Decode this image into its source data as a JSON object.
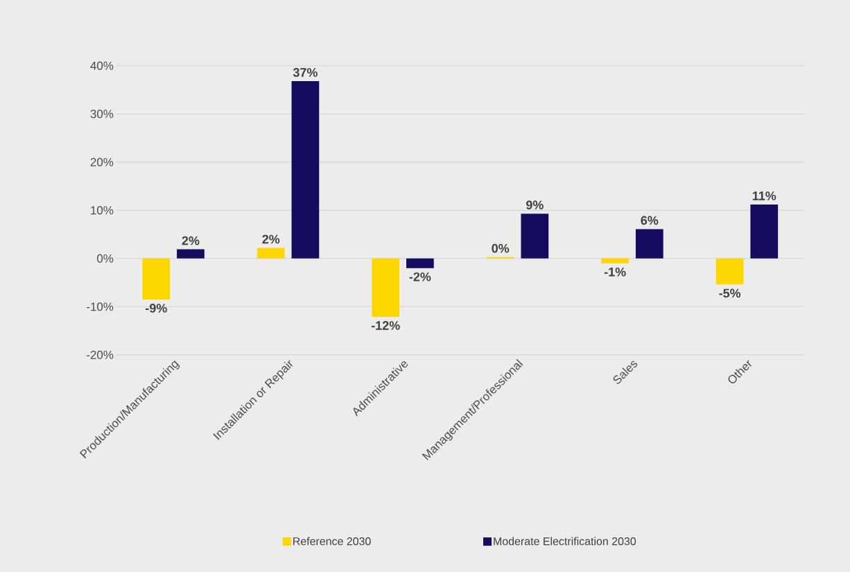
{
  "chart_data": {
    "type": "bar",
    "categories": [
      "Production/Manufacturing",
      "Installation or Repair",
      "Administrative",
      "Management/Professional",
      "Sales",
      "Other"
    ],
    "series": [
      {
        "name": "Reference 2030",
        "color": "#ffd700",
        "values": [
          -8.5,
          2.2,
          -12.1,
          0.3,
          -1.0,
          -5.4
        ],
        "value_labels": [
          "-9%",
          "2%",
          "-12%",
          "0%",
          "-1%",
          "-5%"
        ]
      },
      {
        "name": "Moderate Electrification 2030",
        "color": "#140c5e",
        "values": [
          1.9,
          36.8,
          -2.0,
          9.3,
          6.1,
          11.2
        ],
        "value_labels": [
          "2%",
          "37%",
          "-2%",
          "9%",
          "6%",
          "11%"
        ]
      }
    ],
    "ylim": [
      -20,
      40
    ],
    "yticks": [
      {
        "value": -20,
        "label": "-20%"
      },
      {
        "value": -10,
        "label": "-10%"
      },
      {
        "value": 0,
        "label": "0%"
      },
      {
        "value": 10,
        "label": "10%"
      },
      {
        "value": 20,
        "label": "20%"
      },
      {
        "value": 30,
        "label": "30%"
      },
      {
        "value": 40,
        "label": "40%"
      }
    ],
    "grid": "y",
    "legend": "bottom"
  }
}
